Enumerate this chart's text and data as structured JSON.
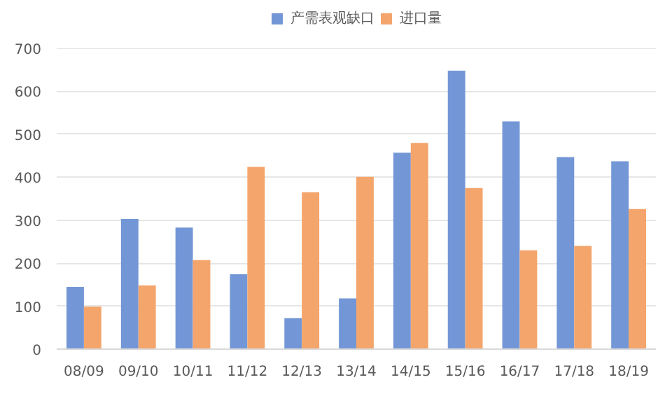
{
  "chart_data": {
    "type": "bar",
    "categories": [
      "08/09",
      "09/10",
      "10/11",
      "11/12",
      "12/13",
      "13/14",
      "14/15",
      "15/16",
      "16/17",
      "17/18",
      "18/19"
    ],
    "series": [
      {
        "name": "产需表观缺口",
        "color": "#7397d6",
        "values": [
          145,
          303,
          283,
          174,
          72,
          118,
          457,
          648,
          530,
          447,
          437
        ]
      },
      {
        "name": "进口量",
        "color": "#f4a56c",
        "values": [
          99,
          148,
          207,
          424,
          365,
          401,
          480,
          375,
          230,
          240,
          326
        ]
      }
    ],
    "ylim": [
      0,
      700
    ],
    "yticks": [
      0,
      100,
      200,
      300,
      400,
      500,
      600,
      700
    ],
    "grid": "y",
    "legend": "top"
  }
}
